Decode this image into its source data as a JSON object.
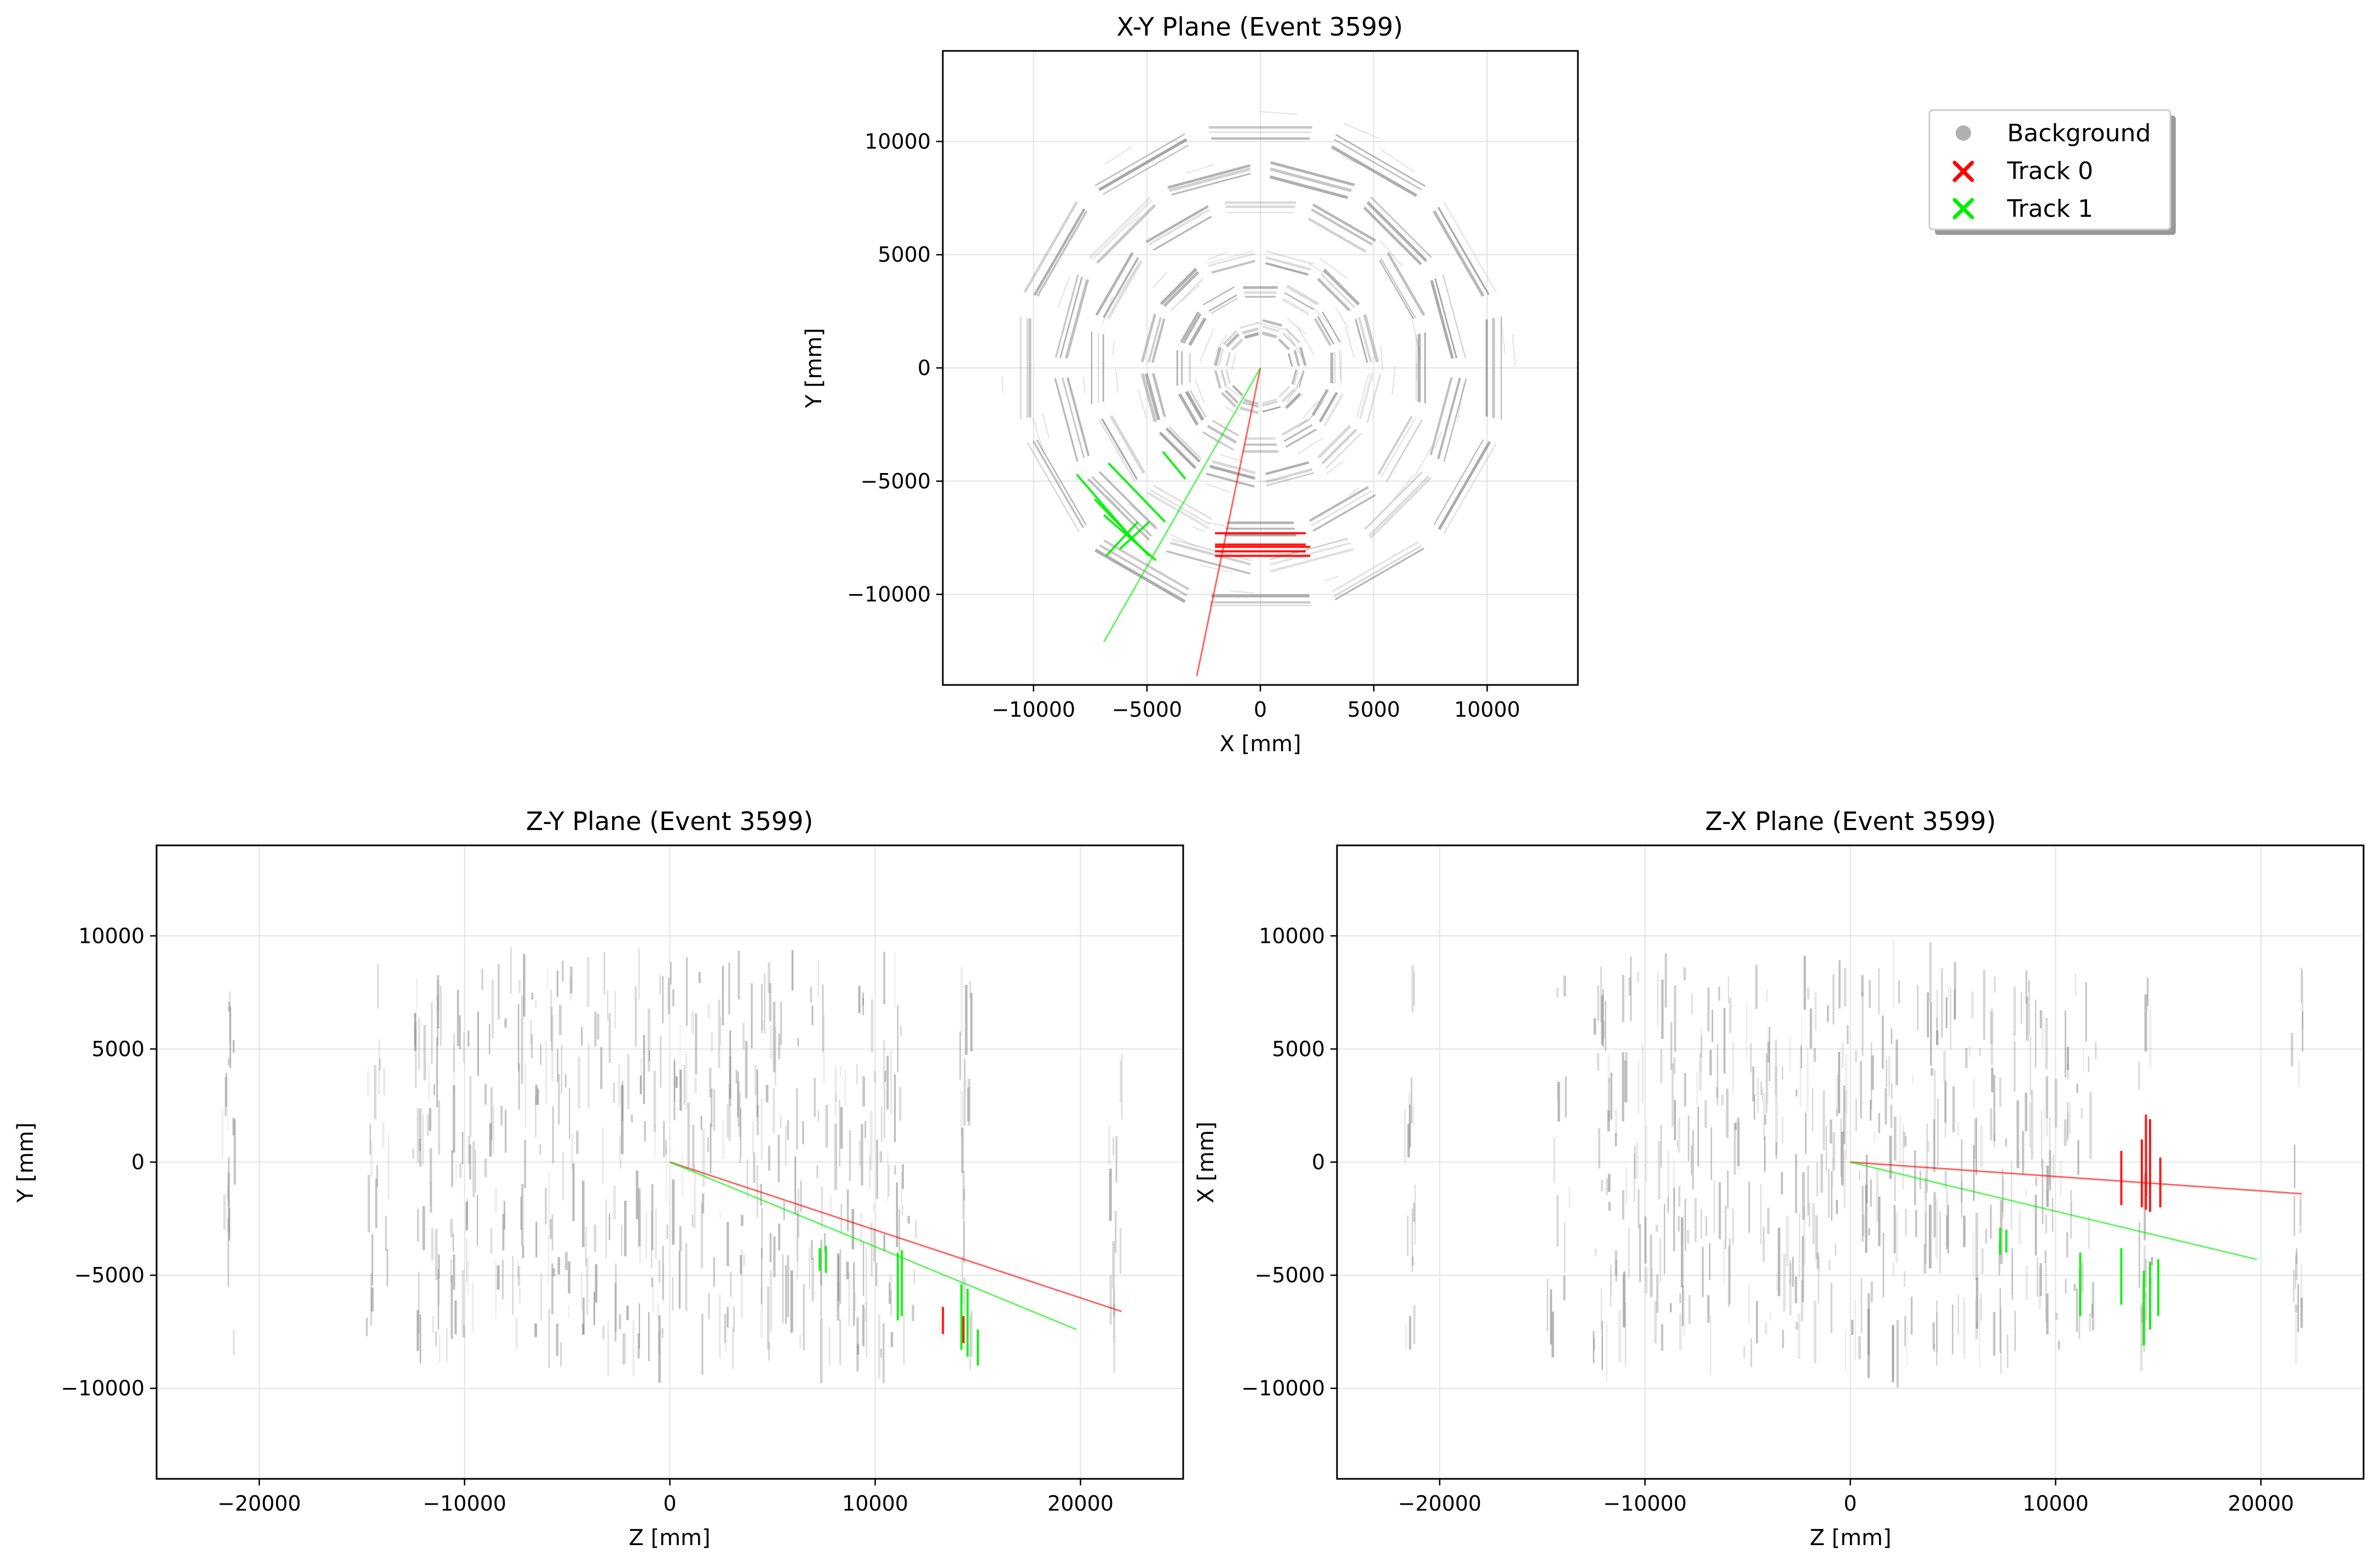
{
  "colors": {
    "background": "#888888",
    "track0": "#ff0000",
    "track1": "#00ee00",
    "grid": "#e3e3e3",
    "axes": "#000000"
  },
  "legend": {
    "placement": "upper-right (figure)",
    "entries": [
      {
        "label": "Background",
        "marker": "circle",
        "color": "#b0b0b0"
      },
      {
        "label": "Track 0",
        "marker": "x",
        "color": "#ff0000"
      },
      {
        "label": "Track 1",
        "marker": "x",
        "color": "#00ee00"
      }
    ]
  },
  "chart_data": [
    {
      "type": "scatter",
      "title": "X-Y Plane (Event 3599)",
      "xlabel": "X [mm]",
      "ylabel": "Y [mm]",
      "xlim": [
        -14000,
        14000
      ],
      "ylim": [
        -14000,
        14000
      ],
      "xticks": [
        -10000,
        -5000,
        0,
        5000,
        10000
      ],
      "yticks": [
        -10000,
        -5000,
        0,
        5000,
        10000
      ],
      "xtick_labels": [
        "−10000",
        "−5000",
        "0",
        "5000",
        "10000"
      ],
      "ytick_labels": [
        "−10000",
        "−5000",
        "0",
        "5000",
        "10000"
      ],
      "grid": true,
      "background_rings_radius": [
        1500,
        3200,
        4700,
        7000,
        8500,
        10300
      ],
      "track_lines": [
        {
          "name": "Track 0",
          "color": "#ff0000",
          "x": [
            0,
            -2800
          ],
          "y": [
            0,
            -13600
          ]
        },
        {
          "name": "Track 1",
          "color": "#00ee00",
          "x": [
            0,
            -6900
          ],
          "y": [
            0,
            -12100
          ]
        }
      ],
      "hit_segments": [
        {
          "series": "Track 0",
          "x": [
            -2000,
            2000
          ],
          "y": [
            -7300,
            -7300
          ]
        },
        {
          "series": "Track 0",
          "x": [
            -2000,
            2000
          ],
          "y": [
            -7800,
            -7800
          ]
        },
        {
          "series": "Track 0",
          "x": [
            -2000,
            2200
          ],
          "y": [
            -7900,
            -7900
          ]
        },
        {
          "series": "Track 0",
          "x": [
            -2000,
            2000
          ],
          "y": [
            -8100,
            -8100
          ]
        },
        {
          "series": "Track 0",
          "x": [
            -2000,
            2200
          ],
          "y": [
            -8300,
            -8300
          ]
        },
        {
          "series": "Track 1",
          "x": [
            -6700,
            -4200
          ],
          "y": [
            -4200,
            -6800
          ]
        },
        {
          "series": "Track 1",
          "x": [
            -8100,
            -5600
          ],
          "y": [
            -4700,
            -7600
          ]
        },
        {
          "series": "Track 1",
          "x": [
            -7300,
            -4900
          ],
          "y": [
            -5800,
            -8300
          ]
        },
        {
          "series": "Track 1",
          "x": [
            -6900,
            -4600
          ],
          "y": [
            -6500,
            -8500
          ]
        },
        {
          "series": "Track 1",
          "x": [
            -4300,
            -3300
          ],
          "y": [
            -3700,
            -4900
          ]
        },
        {
          "series": "Track 1",
          "x": [
            -6800,
            -5400
          ],
          "y": [
            -8300,
            -6800
          ]
        },
        {
          "series": "Track 1",
          "x": [
            -6200,
            -4900
          ],
          "y": [
            -8000,
            -6800
          ]
        }
      ]
    },
    {
      "type": "scatter",
      "title": "Z-Y Plane (Event 3599)",
      "xlabel": "Z [mm]",
      "ylabel": "Y [mm]",
      "xlim": [
        -25000,
        25000
      ],
      "ylim": [
        -14000,
        14000
      ],
      "xticks": [
        -20000,
        -10000,
        0,
        10000,
        20000
      ],
      "yticks": [
        -10000,
        -5000,
        0,
        5000,
        10000
      ],
      "xtick_labels": [
        "−20000",
        "−10000",
        "0",
        "10000",
        "20000"
      ],
      "ytick_labels": [
        "−10000",
        "−5000",
        "0",
        "5000",
        "10000"
      ],
      "grid": true,
      "track_lines": [
        {
          "name": "Track 0",
          "color": "#ff0000",
          "x": [
            0,
            22000
          ],
          "y": [
            0,
            -6600
          ]
        },
        {
          "name": "Track 1",
          "color": "#00ee00",
          "x": [
            0,
            19800
          ],
          "y": [
            0,
            -7400
          ]
        }
      ],
      "hit_segments": [
        {
          "series": "Track 1",
          "x": [
            7300,
            7300
          ],
          "y": [
            -3800,
            -4800
          ]
        },
        {
          "series": "Track 1",
          "x": [
            7600,
            7600
          ],
          "y": [
            -3700,
            -4900
          ]
        },
        {
          "series": "Track 1",
          "x": [
            11100,
            11100
          ],
          "y": [
            -4000,
            -7000
          ]
        },
        {
          "series": "Track 1",
          "x": [
            11300,
            11300
          ],
          "y": [
            -3900,
            -6800
          ]
        },
        {
          "series": "Track 1",
          "x": [
            14200,
            14200
          ],
          "y": [
            -5400,
            -8300
          ]
        },
        {
          "series": "Track 1",
          "x": [
            14500,
            14500
          ],
          "y": [
            -5600,
            -8600
          ]
        },
        {
          "series": "Track 1",
          "x": [
            15000,
            15000
          ],
          "y": [
            -7400,
            -9000
          ]
        },
        {
          "series": "Track 0",
          "x": [
            13300,
            13300
          ],
          "y": [
            -6400,
            -7600
          ]
        },
        {
          "series": "Track 0",
          "x": [
            14300,
            14300
          ],
          "y": [
            -6800,
            -8000
          ]
        }
      ]
    },
    {
      "type": "scatter",
      "title": "Z-X Plane (Event 3599)",
      "xlabel": "Z [mm]",
      "ylabel": "X [mm]",
      "xlim": [
        -25000,
        25000
      ],
      "ylim": [
        -14000,
        14000
      ],
      "xticks": [
        -20000,
        -10000,
        0,
        10000,
        20000
      ],
      "yticks": [
        -10000,
        -5000,
        0,
        5000,
        10000
      ],
      "xtick_labels": [
        "−20000",
        "−10000",
        "0",
        "10000",
        "20000"
      ],
      "ytick_labels": [
        "−10000",
        "−5000",
        "0",
        "5000",
        "10000"
      ],
      "grid": true,
      "track_lines": [
        {
          "name": "Track 0",
          "color": "#ff0000",
          "x": [
            0,
            22000
          ],
          "y": [
            0,
            -1400
          ]
        },
        {
          "name": "Track 1",
          "color": "#00ee00",
          "x": [
            0,
            19800
          ],
          "y": [
            0,
            -4300
          ]
        }
      ],
      "hit_segments": [
        {
          "series": "Track 0",
          "x": [
            13200,
            13200
          ],
          "y": [
            500,
            -1900
          ]
        },
        {
          "series": "Track 0",
          "x": [
            14200,
            14200
          ],
          "y": [
            1000,
            -2000
          ]
        },
        {
          "series": "Track 0",
          "x": [
            14400,
            14400
          ],
          "y": [
            2100,
            -2100
          ]
        },
        {
          "series": "Track 0",
          "x": [
            14600,
            14600
          ],
          "y": [
            1900,
            -2200
          ]
        },
        {
          "series": "Track 0",
          "x": [
            15100,
            15100
          ],
          "y": [
            200,
            -2000
          ]
        },
        {
          "series": "Track 1",
          "x": [
            7300,
            7300
          ],
          "y": [
            -2900,
            -4100
          ]
        },
        {
          "series": "Track 1",
          "x": [
            7600,
            7600
          ],
          "y": [
            -3000,
            -4000
          ]
        },
        {
          "series": "Track 1",
          "x": [
            11200,
            11200
          ],
          "y": [
            -4000,
            -6800
          ]
        },
        {
          "series": "Track 1",
          "x": [
            13200,
            13200
          ],
          "y": [
            -3800,
            -6300
          ]
        },
        {
          "series": "Track 1",
          "x": [
            14300,
            14300
          ],
          "y": [
            -4800,
            -8100
          ]
        },
        {
          "series": "Track 1",
          "x": [
            14600,
            14600
          ],
          "y": [
            -4400,
            -7400
          ]
        },
        {
          "series": "Track 1",
          "x": [
            15000,
            15000
          ],
          "y": [
            -4300,
            -6800
          ]
        }
      ]
    }
  ]
}
